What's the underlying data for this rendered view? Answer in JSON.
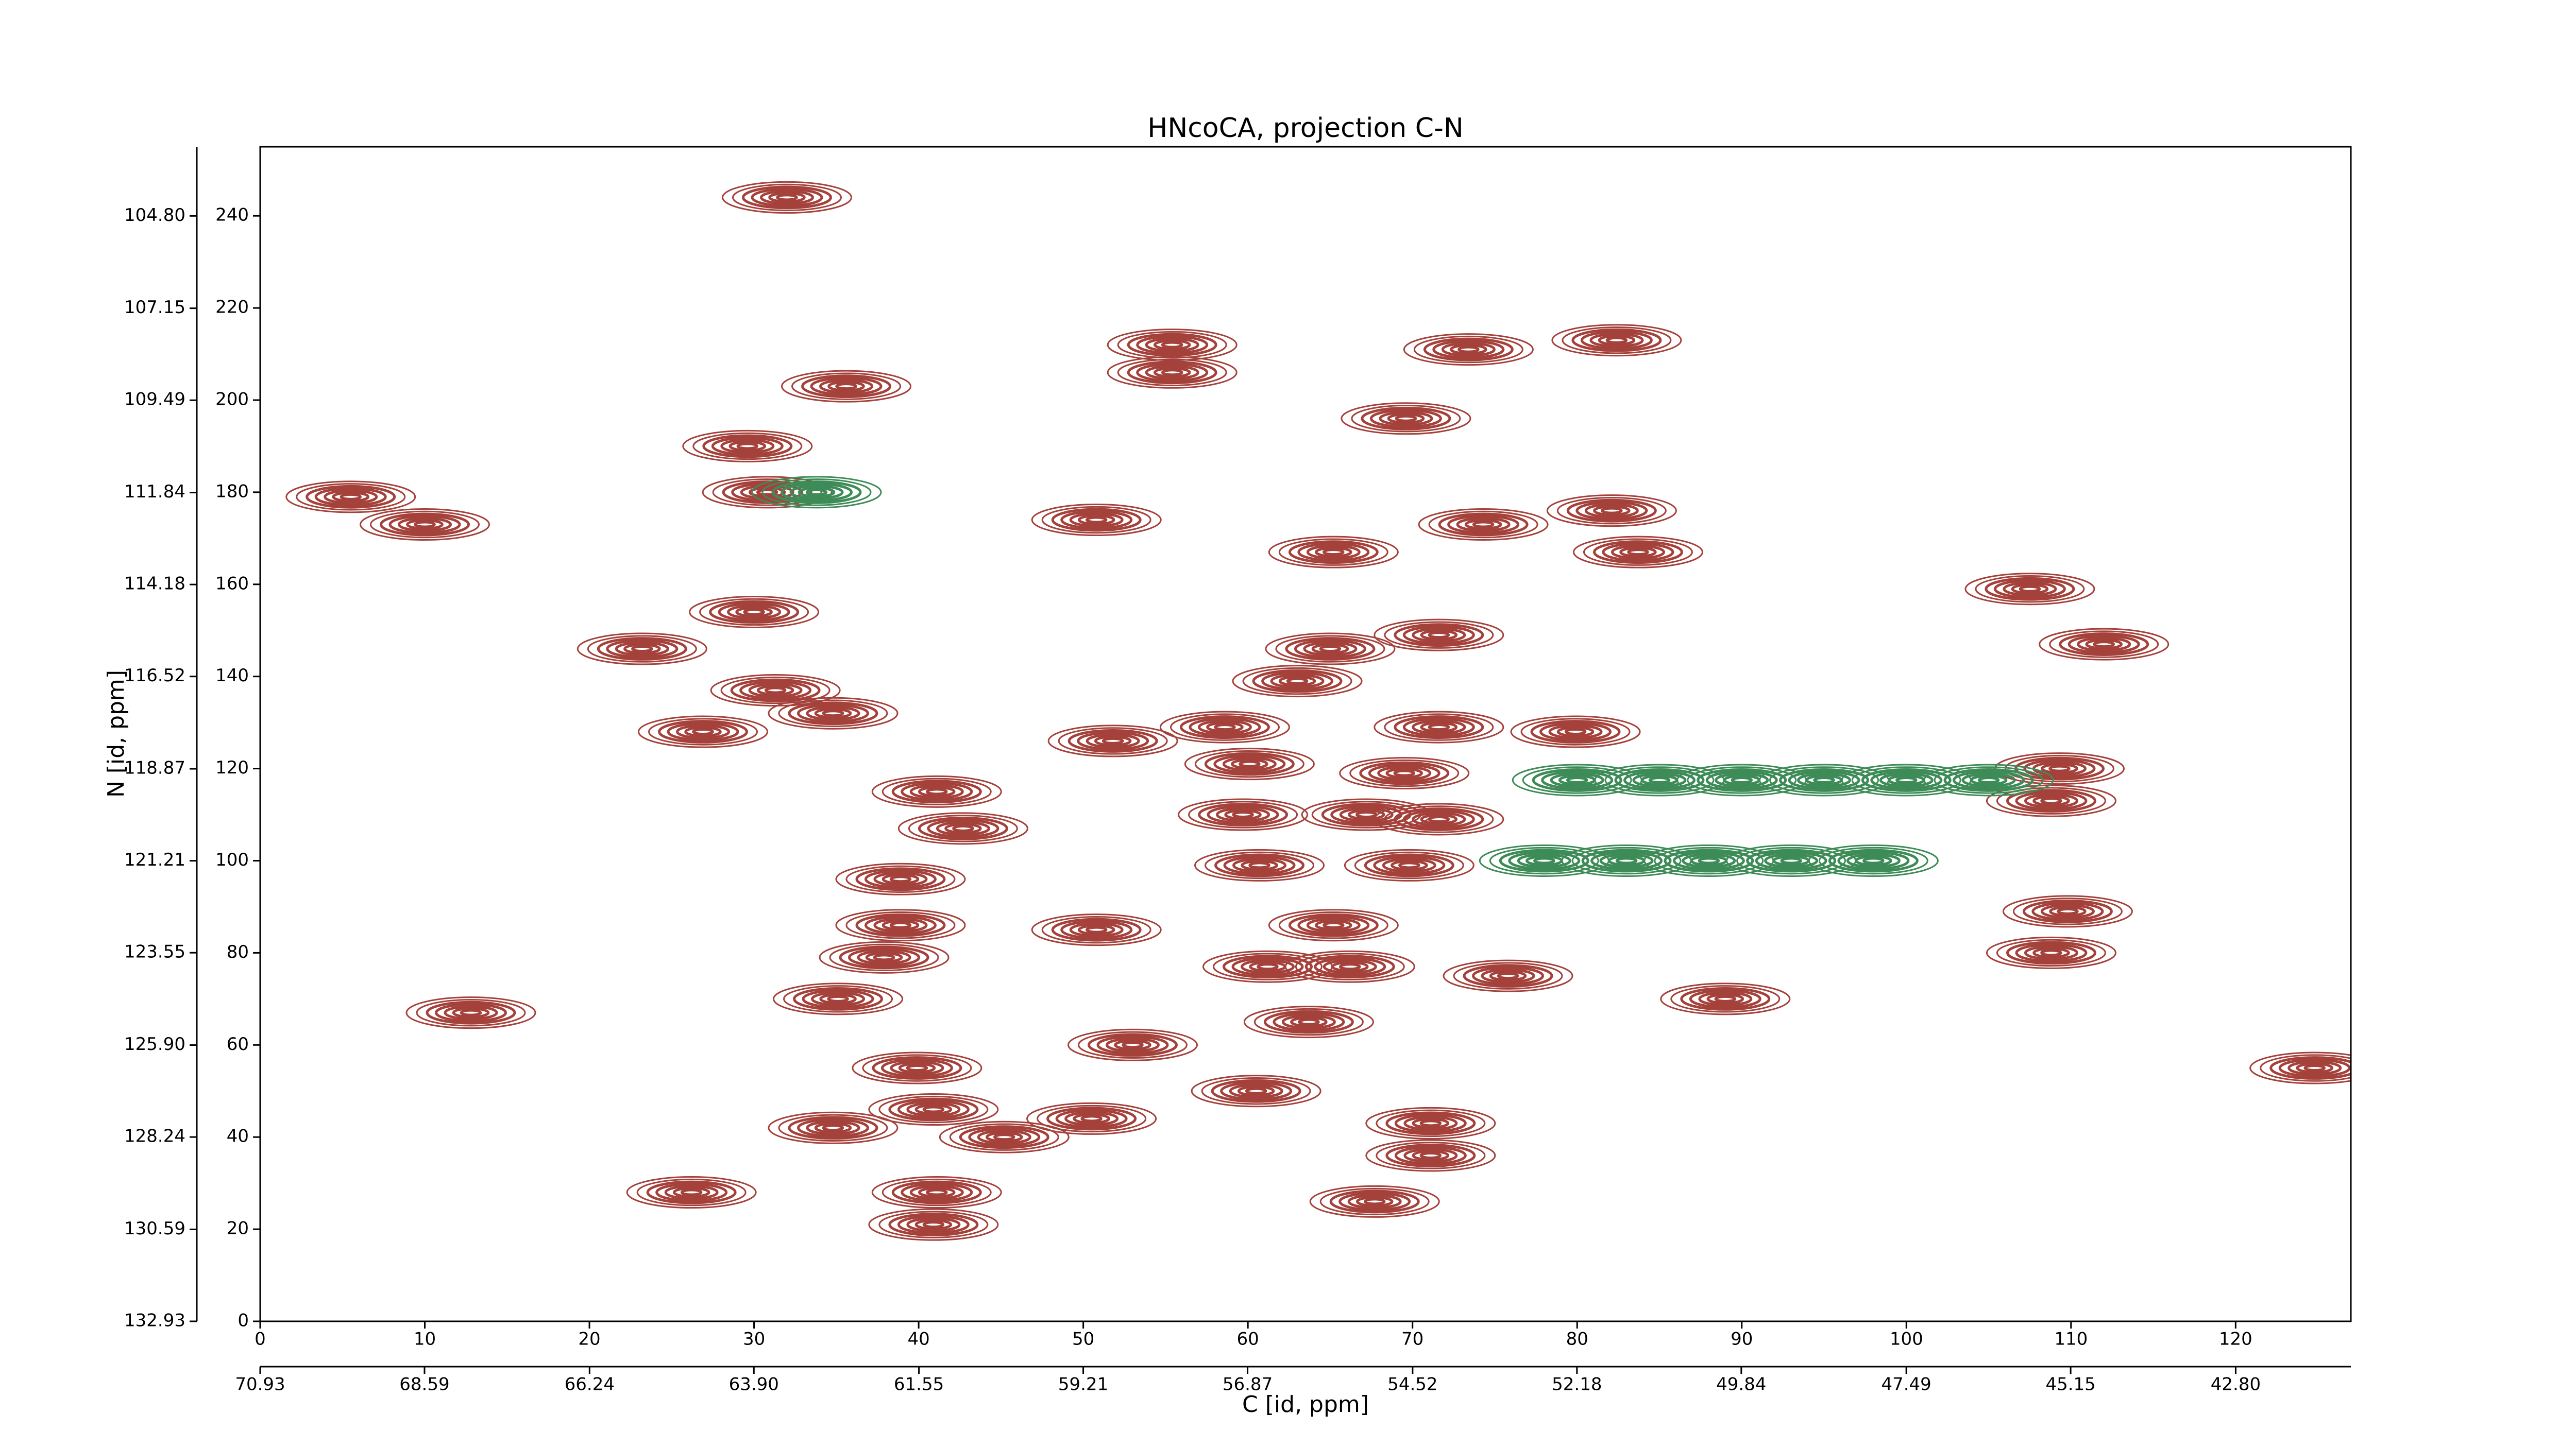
{
  "chart_data": {
    "type": "contour",
    "title": "HNcoCA, projection C-N",
    "x_label": "C [id, ppm]",
    "y_label": "N [id, ppm]",
    "xlim": [
      0,
      127
    ],
    "xticks": [
      0,
      10,
      20,
      30,
      40,
      50,
      60,
      70,
      80,
      90,
      100,
      110,
      120
    ],
    "ylim": [
      0,
      255
    ],
    "yticks": [
      0,
      20,
      40,
      60,
      80,
      100,
      120,
      140,
      160,
      180,
      200,
      220,
      240
    ],
    "x2lim": [
      70.93,
      41.16
    ],
    "x2ticks": [
      70.93,
      68.59,
      66.24,
      {
        "value": 63.9,
        "label": "63.90"
      },
      61.55,
      59.21,
      56.87,
      54.52,
      52.18,
      49.84,
      47.49,
      45.15,
      {
        "value": 42.8,
        "label": "42.80"
      }
    ],
    "y2lim": [
      132.93,
      103.04
    ],
    "y2ticks": [
      132.93,
      130.59,
      128.24,
      {
        "value": 125.9,
        "label": "125.90"
      },
      123.55,
      121.21,
      118.87,
      116.52,
      114.18,
      111.84,
      109.49,
      107.15,
      {
        "value": 104.8,
        "label": "104.80"
      }
    ],
    "series": [
      {
        "color": "#a5413b",
        "x": [
          32,
          55.4,
          55.4,
          73.4,
          82.4,
          69.6,
          35.6,
          29.6,
          30.8,
          5.5,
          10,
          50.8,
          74.3,
          82.1,
          83.7,
          65.2,
          107.5,
          112,
          30,
          23.2,
          31.3,
          34.8,
          26.9,
          65,
          71.6,
          63,
          51.8,
          58.6,
          71.6,
          79.9,
          60.1,
          69.5,
          109.3,
          41.1,
          42.7,
          59.7,
          67.2,
          71.6,
          108.8,
          69.8,
          60.7,
          38.9,
          109.8,
          50.8,
          37.9,
          38.9,
          65.2,
          108.8,
          61.2,
          66.2,
          35.1,
          89,
          75.8,
          63.7,
          53,
          39.9,
          12.8,
          60.5,
          40.9,
          50.5,
          34.8,
          45.2,
          71.1,
          71.1,
          26.2,
          41.1,
          67.7,
          40.9,
          124.8
        ],
        "y": [
          244,
          212,
          206,
          211,
          213,
          196,
          203,
          190,
          180,
          179,
          173,
          174,
          173,
          176,
          167,
          167,
          159,
          147,
          154,
          146,
          137,
          132,
          128,
          146,
          149,
          139,
          126,
          129,
          129,
          128,
          121,
          119,
          120,
          115,
          107,
          110,
          110,
          109,
          113,
          99,
          99,
          96,
          89,
          85,
          79,
          86,
          86,
          80,
          77,
          77,
          70,
          70,
          75,
          65,
          60,
          55,
          67,
          50,
          46,
          44,
          42,
          40,
          43,
          36,
          28,
          28,
          26,
          21,
          55
        ]
      },
      {
        "color": "#3d8b57",
        "x": [
          80,
          85,
          90,
          95,
          100,
          105,
          78,
          83,
          88,
          93,
          98,
          33.8
        ],
        "y": [
          117.5,
          117.5,
          117.5,
          117.5,
          117.5,
          117.5,
          100,
          100,
          100,
          100,
          100,
          180
        ]
      }
    ]
  }
}
